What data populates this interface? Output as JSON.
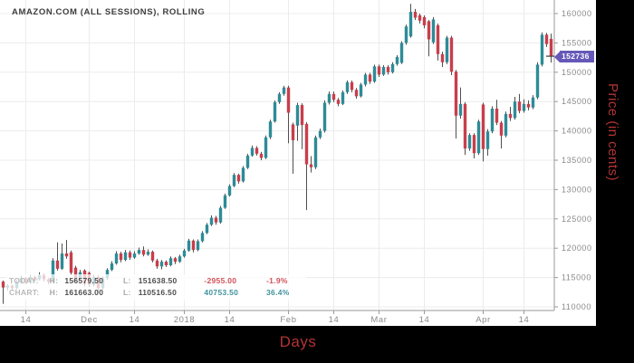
{
  "title": "AMAZON.COM (ALL SESSIONS), ROLLING",
  "x_axis_label": "Days",
  "y_axis_label": "Price (in cents)",
  "last_price_tag": "152736",
  "legend": {
    "today_label": "TODAY:",
    "chart_label": "CHART:",
    "high_key": "H:",
    "low_key": "L:",
    "today_high": "156579.50",
    "today_low": "151638.50",
    "today_change": "-2955.00",
    "today_change_pct": "-1.9%",
    "chart_high": "161663.00",
    "chart_low": "110516.50",
    "chart_change": "40753.50",
    "chart_change_pct": "36.4%"
  },
  "colors": {
    "up": "#2e8b97",
    "down": "#c83e4b",
    "wick": "#4f4f4f",
    "grid": "#ececec",
    "axis": "#9a9a9a",
    "tick_text": "#8a8a8a",
    "tag_bg": "#6658b8",
    "tag_text": "#ffffff",
    "axis_title_red": "#b23434"
  },
  "chart_data": {
    "type": "candlestick",
    "title": "AMAZON.COM (ALL SESSIONS), ROLLING",
    "xlabel": "Days",
    "ylabel": "Price (in cents)",
    "y_min": 110000,
    "y_max": 160000,
    "y_step": 5000,
    "grid": true,
    "last_close": 152736,
    "x_ticks": [
      {
        "i": 5,
        "label": "14"
      },
      {
        "i": 19,
        "label": "Dec"
      },
      {
        "i": 29,
        "label": "14"
      },
      {
        "i": 40,
        "label": "2018"
      },
      {
        "i": 50,
        "label": "14"
      },
      {
        "i": 63,
        "label": "Feb"
      },
      {
        "i": 73,
        "label": "14"
      },
      {
        "i": 83,
        "label": "Mar"
      },
      {
        "i": 93,
        "label": "14"
      },
      {
        "i": 106,
        "label": "Apr"
      },
      {
        "i": 115,
        "label": "14"
      }
    ],
    "candles_format": [
      "open",
      "high",
      "low",
      "close"
    ],
    "candles": [
      [
        114300,
        114500,
        110516,
        113300
      ],
      [
        113300,
        113900,
        112800,
        113600
      ],
      [
        113600,
        113800,
        112900,
        113200
      ],
      [
        113200,
        114600,
        113000,
        114200
      ],
      [
        114200,
        115300,
        114000,
        114900
      ],
      [
        114900,
        115100,
        113900,
        114300
      ],
      [
        114300,
        115500,
        114100,
        115100
      ],
      [
        115100,
        115300,
        114300,
        114700
      ],
      [
        114700,
        115900,
        114500,
        115400
      ],
      [
        115400,
        115600,
        114300,
        114700
      ],
      [
        114700,
        114900,
        113900,
        114300
      ],
      [
        114300,
        118300,
        114100,
        117900
      ],
      [
        117900,
        121000,
        116200,
        116500
      ],
      [
        116500,
        120800,
        116300,
        119100
      ],
      [
        119100,
        121400,
        118200,
        118600
      ],
      [
        119300,
        119600,
        115400,
        115800
      ],
      [
        116700,
        117000,
        114300,
        114700
      ],
      [
        114700,
        116300,
        114400,
        115900
      ],
      [
        116200,
        116400,
        113500,
        113900
      ],
      [
        115800,
        116000,
        113400,
        113800
      ],
      [
        113800,
        115500,
        113500,
        115100
      ],
      [
        115100,
        115400,
        112400,
        113200
      ],
      [
        113200,
        115200,
        112900,
        114900
      ],
      [
        114900,
        116600,
        114600,
        116300
      ],
      [
        116300,
        117800,
        116100,
        117400
      ],
      [
        117400,
        119500,
        117200,
        119100
      ],
      [
        119100,
        119400,
        117600,
        118000
      ],
      [
        118000,
        119700,
        117800,
        119300
      ],
      [
        119300,
        119600,
        118000,
        118400
      ],
      [
        118400,
        119500,
        118200,
        119100
      ],
      [
        119100,
        120100,
        118900,
        119700
      ],
      [
        119700,
        120300,
        118600,
        118900
      ],
      [
        118900,
        119800,
        118700,
        119400
      ],
      [
        119400,
        119600,
        117600,
        117900
      ],
      [
        117900,
        118200,
        116500,
        116900
      ],
      [
        116900,
        118000,
        116400,
        117700
      ],
      [
        117700,
        117900,
        116800,
        117100
      ],
      [
        117100,
        118600,
        116900,
        118300
      ],
      [
        118300,
        118500,
        117300,
        117700
      ],
      [
        117700,
        118900,
        117500,
        118600
      ],
      [
        118600,
        119900,
        118400,
        119600
      ],
      [
        119600,
        121600,
        119400,
        121300
      ],
      [
        121300,
        121500,
        119300,
        119700
      ],
      [
        119700,
        121500,
        119500,
        121200
      ],
      [
        121200,
        122900,
        121000,
        122600
      ],
      [
        122600,
        124300,
        122400,
        124000
      ],
      [
        124000,
        125600,
        123800,
        125200
      ],
      [
        125200,
        125500,
        124000,
        124400
      ],
      [
        124400,
        127200,
        124200,
        126900
      ],
      [
        126900,
        129300,
        126700,
        129000
      ],
      [
        129000,
        130900,
        128800,
        130600
      ],
      [
        130600,
        132800,
        130400,
        132500
      ],
      [
        132500,
        132700,
        131000,
        131400
      ],
      [
        131400,
        134000,
        131200,
        133700
      ],
      [
        133700,
        136100,
        133500,
        135800
      ],
      [
        135800,
        137500,
        135600,
        137100
      ],
      [
        137100,
        137400,
        135800,
        136100
      ],
      [
        136100,
        136400,
        135000,
        135400
      ],
      [
        135400,
        139200,
        135200,
        138900
      ],
      [
        138900,
        141900,
        138600,
        141600
      ],
      [
        141600,
        145200,
        141400,
        144900
      ],
      [
        144900,
        146600,
        144600,
        146300
      ],
      [
        146300,
        147700,
        146000,
        147400
      ],
      [
        147400,
        147700,
        137900,
        143100
      ],
      [
        141100,
        141400,
        132700,
        138400
      ],
      [
        140900,
        144800,
        138300,
        144400
      ],
      [
        144400,
        144700,
        136900,
        141000
      ],
      [
        141200,
        141500,
        126500,
        134300
      ],
      [
        134300,
        135700,
        132900,
        133800
      ],
      [
        133800,
        139200,
        133500,
        138900
      ],
      [
        138900,
        140400,
        138600,
        140000
      ],
      [
        140000,
        145200,
        139700,
        144800
      ],
      [
        144800,
        146700,
        144500,
        146300
      ],
      [
        146300,
        146700,
        144900,
        145300
      ],
      [
        145300,
        145600,
        144200,
        144600
      ],
      [
        144600,
        146900,
        144400,
        146600
      ],
      [
        146600,
        148600,
        146300,
        148300
      ],
      [
        148300,
        148600,
        146600,
        147000
      ],
      [
        147000,
        147300,
        145500,
        145900
      ],
      [
        145900,
        148200,
        145700,
        147900
      ],
      [
        147900,
        149900,
        147600,
        149600
      ],
      [
        149600,
        149900,
        148000,
        148400
      ],
      [
        148400,
        151300,
        148200,
        151000
      ],
      [
        151000,
        151300,
        149200,
        149600
      ],
      [
        149600,
        151200,
        149400,
        150900
      ],
      [
        150900,
        151200,
        149600,
        150000
      ],
      [
        150000,
        151700,
        149800,
        151400
      ],
      [
        151400,
        152900,
        151100,
        152600
      ],
      [
        151600,
        155300,
        151400,
        155000
      ],
      [
        155000,
        158100,
        154700,
        157800
      ],
      [
        156100,
        161663,
        155900,
        160300
      ],
      [
        160300,
        160800,
        158900,
        159300
      ],
      [
        159700,
        160000,
        158300,
        158800
      ],
      [
        159400,
        159700,
        157500,
        158000
      ],
      [
        158700,
        158900,
        152700,
        155600
      ],
      [
        155100,
        159400,
        154800,
        159000
      ],
      [
        158000,
        158300,
        152000,
        153100
      ],
      [
        153100,
        153500,
        150900,
        151700
      ],
      [
        151700,
        156200,
        151400,
        155900
      ],
      [
        155900,
        156200,
        149500,
        150100
      ],
      [
        150100,
        150400,
        138700,
        142600
      ],
      [
        142600,
        147400,
        142100,
        144600
      ],
      [
        144600,
        144900,
        135900,
        137000
      ],
      [
        137000,
        139600,
        136600,
        139300
      ],
      [
        139300,
        139600,
        135300,
        136200
      ],
      [
        136200,
        141900,
        135900,
        141600
      ],
      [
        144500,
        144800,
        134800,
        136900
      ],
      [
        136900,
        140300,
        135800,
        139900
      ],
      [
        139900,
        144200,
        139600,
        143800
      ],
      [
        143800,
        145300,
        141000,
        141400
      ],
      [
        141400,
        141700,
        137000,
        139200
      ],
      [
        139200,
        143300,
        138900,
        142900
      ],
      [
        142900,
        144100,
        141700,
        142200
      ],
      [
        142200,
        145800,
        141900,
        145000
      ],
      [
        145000,
        146300,
        143000,
        143400
      ],
      [
        143400,
        145400,
        143100,
        144600
      ],
      [
        144600,
        145200,
        143500,
        144000
      ],
      [
        144000,
        146100,
        143700,
        145700
      ],
      [
        145700,
        151700,
        145400,
        151300
      ],
      [
        151300,
        156800,
        151000,
        156400
      ],
      [
        156400,
        156700,
        154300,
        154800
      ],
      [
        155691,
        156579.5,
        151638.5,
        152736
      ]
    ]
  }
}
